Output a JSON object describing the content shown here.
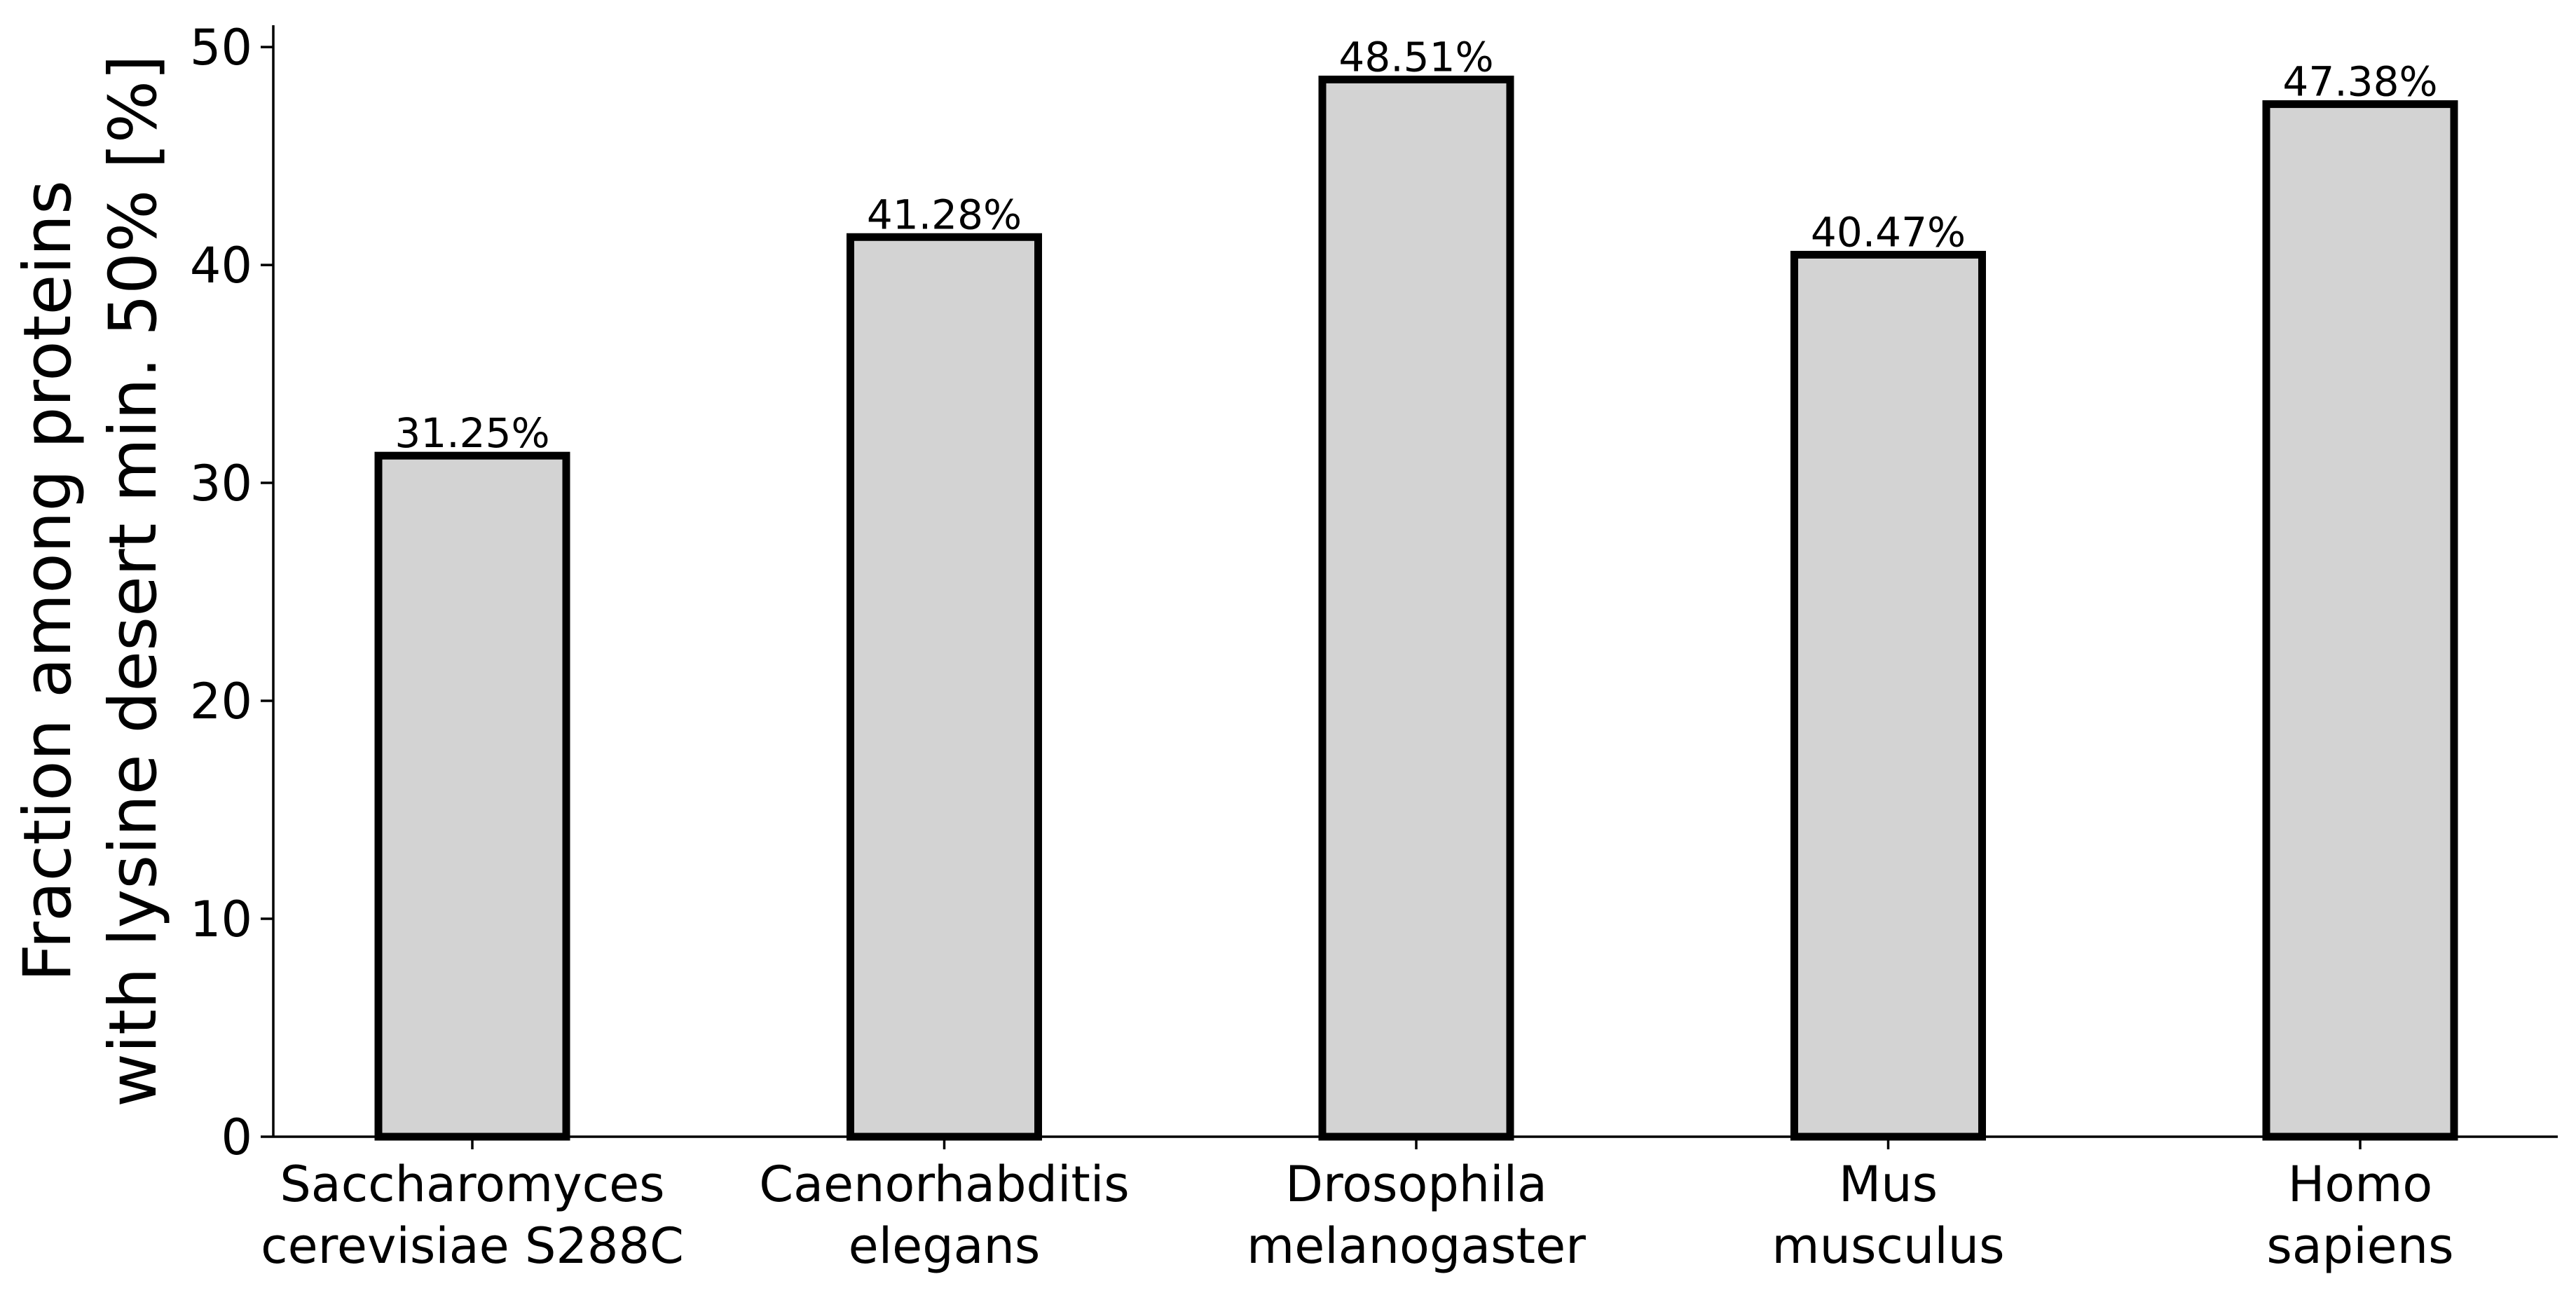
{
  "chart_data": {
    "type": "bar",
    "title": "",
    "xlabel": "",
    "ylabel": [
      "Fraction among proteins",
      "with lysine desert min. 50% [%]"
    ],
    "ylim": [
      0,
      51
    ],
    "yticks": [
      0,
      10,
      20,
      30,
      40,
      50
    ],
    "categories": [
      [
        "Saccharomyces",
        "cerevisiae S288C"
      ],
      [
        "Caenorhabditis",
        "elegans"
      ],
      [
        "Drosophila",
        "melanogaster"
      ],
      [
        "Mus",
        "musculus"
      ],
      [
        "Homo",
        "sapiens"
      ]
    ],
    "values": [
      31.25,
      41.28,
      48.51,
      40.47,
      47.38
    ],
    "data_labels": [
      "31.25%",
      "41.28%",
      "48.51%",
      "40.47%",
      "47.38%"
    ],
    "bar_color": "#d3d3d3",
    "edge_color": "#000000",
    "grid": false,
    "legend": "none"
  }
}
